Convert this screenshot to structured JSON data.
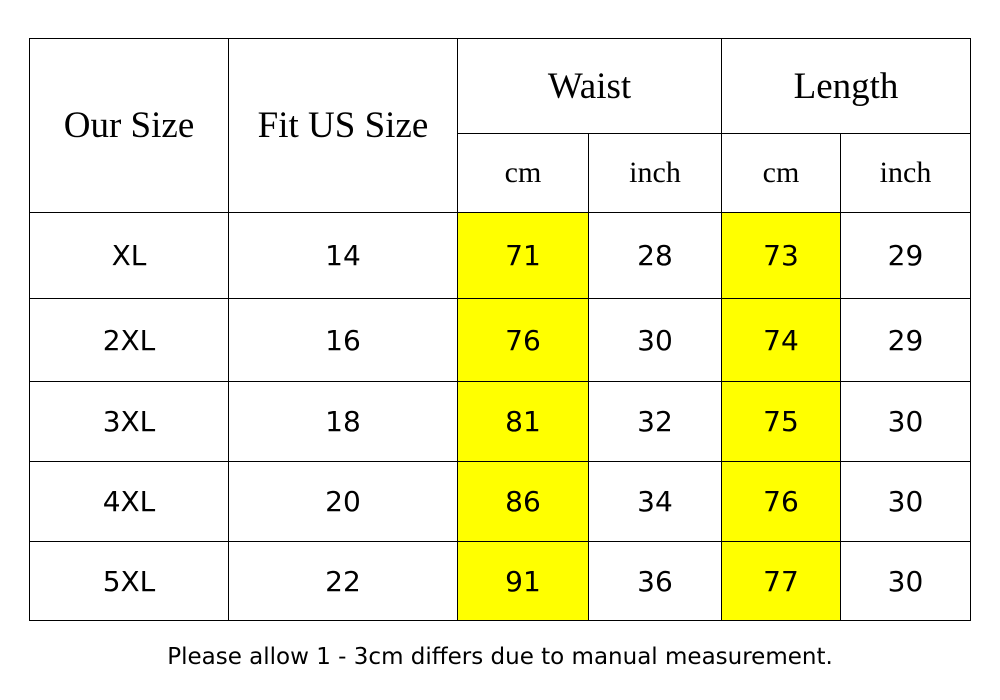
{
  "headers": {
    "our_size": "Our Size",
    "fit_us_size": "Fit US Size",
    "waist": "Waist",
    "length": "Length",
    "waist_cm": "cm",
    "waist_inch": "inch",
    "length_cm": "cm",
    "length_inch": "inch"
  },
  "rows": [
    {
      "our_size": "XL",
      "fit_us": "14",
      "waist_cm": "71",
      "waist_inch": "28",
      "length_cm": "73",
      "length_inch": "29"
    },
    {
      "our_size": "2XL",
      "fit_us": "16",
      "waist_cm": "76",
      "waist_inch": "30",
      "length_cm": "74",
      "length_inch": "29"
    },
    {
      "our_size": "3XL",
      "fit_us": "18",
      "waist_cm": "81",
      "waist_inch": "32",
      "length_cm": "75",
      "length_inch": "30"
    },
    {
      "our_size": "4XL",
      "fit_us": "20",
      "waist_cm": "86",
      "waist_inch": "34",
      "length_cm": "76",
      "length_inch": "30"
    },
    {
      "our_size": "5XL",
      "fit_us": "22",
      "waist_cm": "91",
      "waist_inch": "36",
      "length_cm": "77",
      "length_inch": "30"
    }
  ],
  "highlight_color": "#ffff00",
  "note": "Please allow 1 - 3cm differs due to manual measurement."
}
